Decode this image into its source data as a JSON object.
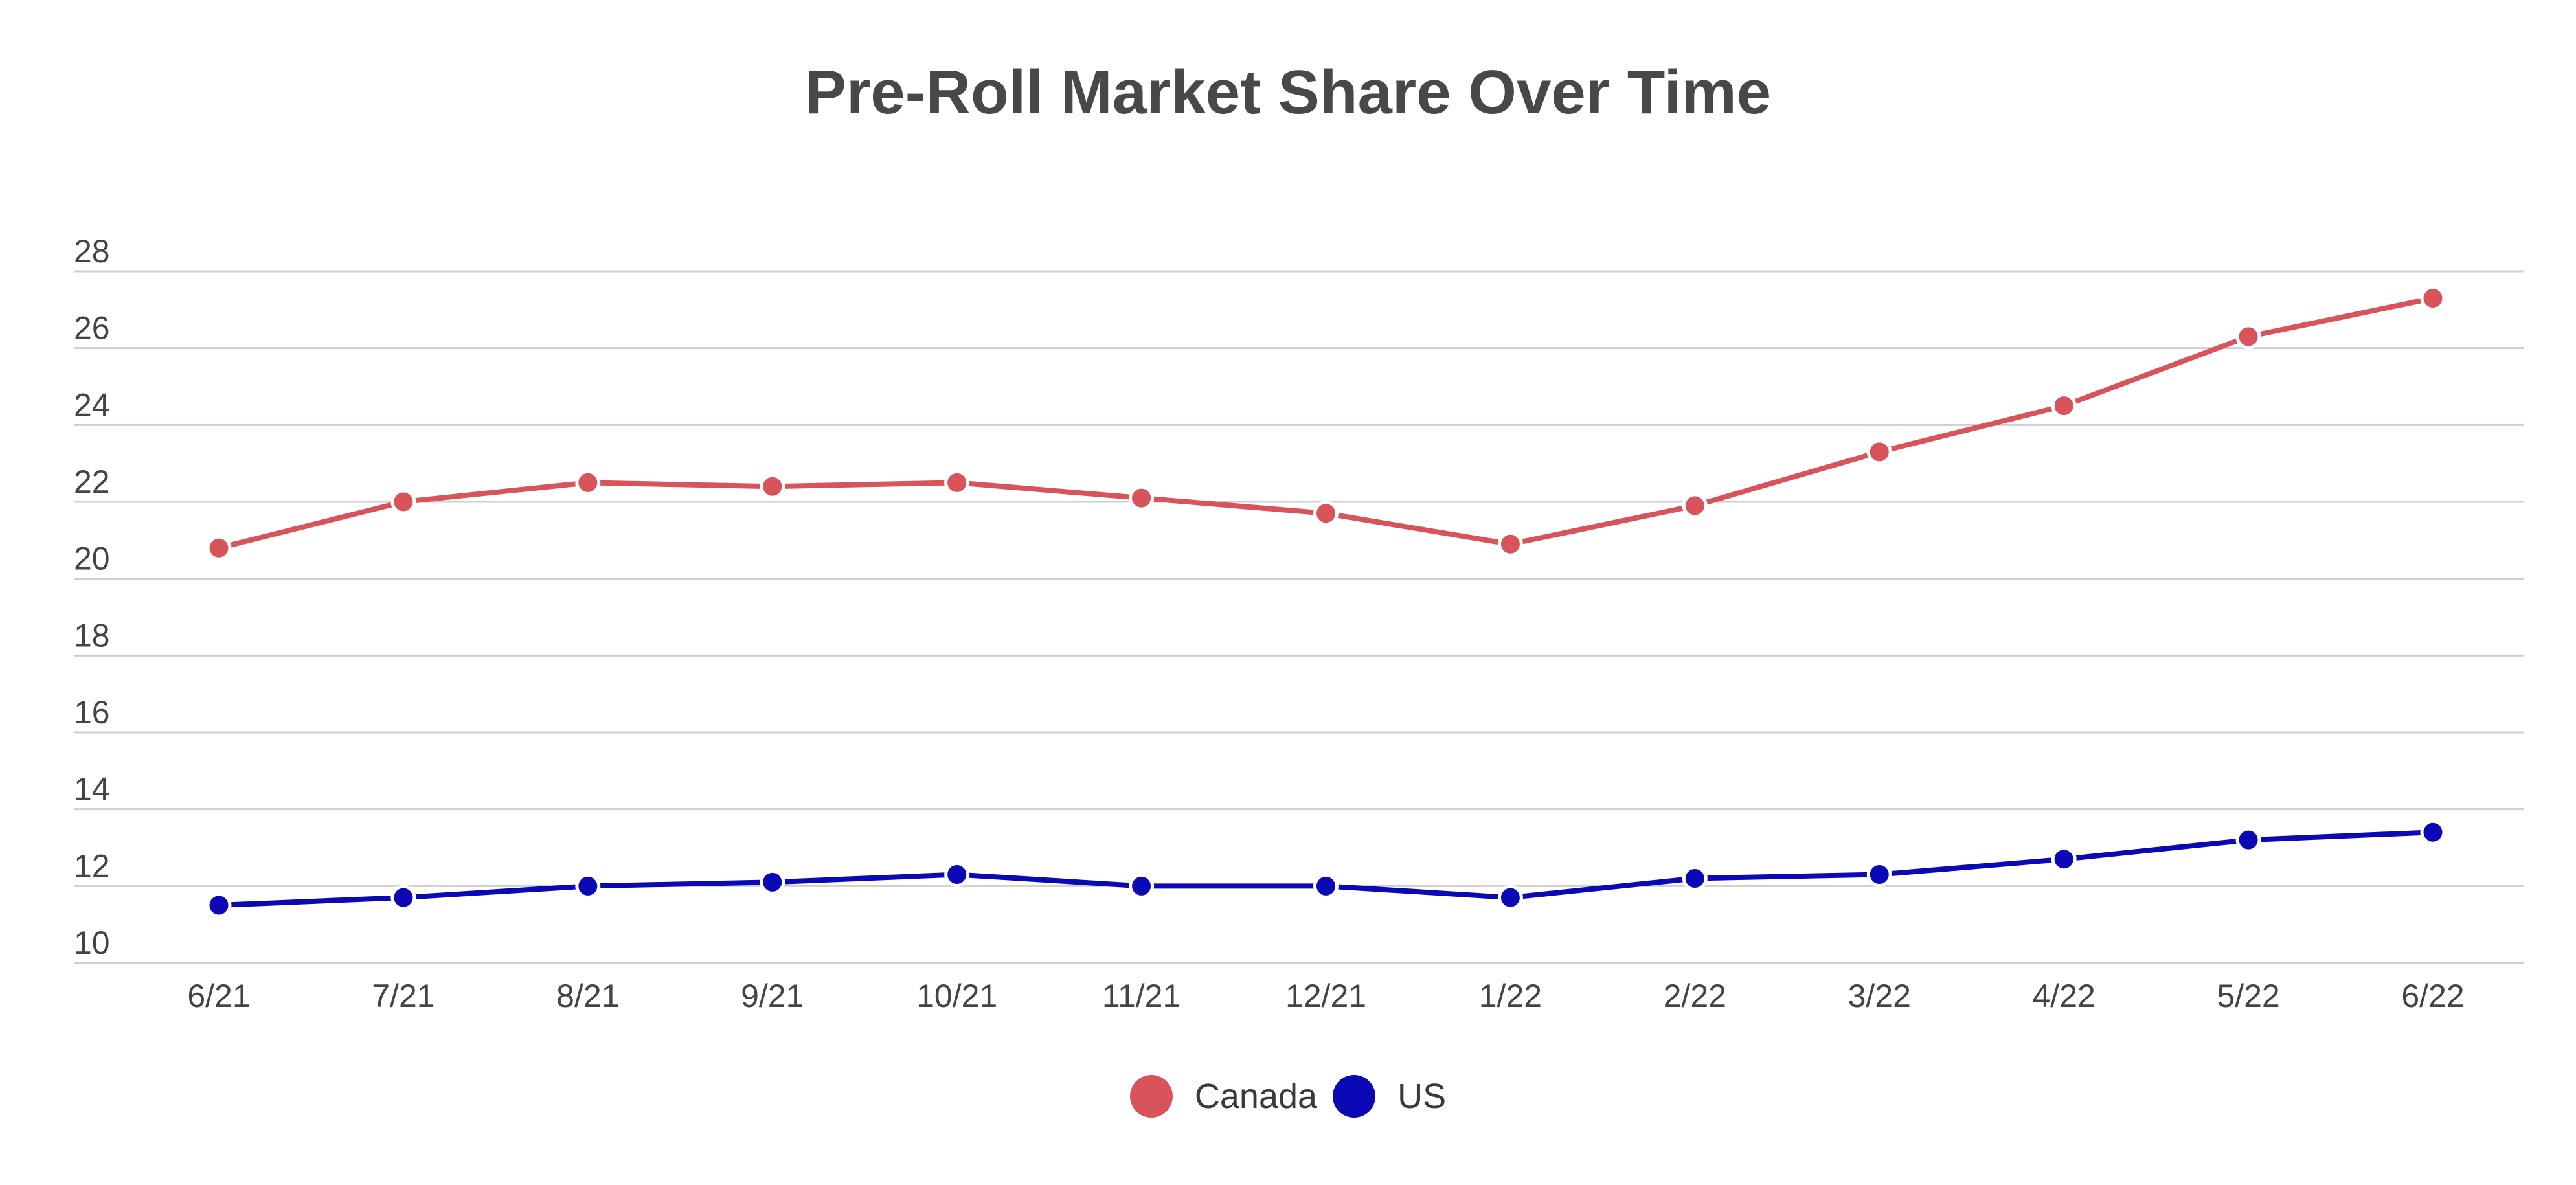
{
  "chart_data": {
    "type": "line",
    "title": "Pre-Roll Market Share Over Time",
    "xlabel": "",
    "ylabel": "",
    "categories": [
      "6/21",
      "7/21",
      "8/21",
      "9/21",
      "10/21",
      "11/21",
      "12/21",
      "1/22",
      "2/22",
      "3/22",
      "4/22",
      "5/22",
      "6/22"
    ],
    "ylim": [
      10,
      28
    ],
    "yticks": [
      "10",
      "12",
      "14",
      "16",
      "18",
      "20",
      "22",
      "24",
      "26",
      "28"
    ],
    "grid": true,
    "legend_position": "bottom-center",
    "series": [
      {
        "name": "Canada",
        "color": "#d9545a",
        "values": [
          20.8,
          22.0,
          22.5,
          22.4,
          22.5,
          22.1,
          21.7,
          20.9,
          21.9,
          23.3,
          24.5,
          26.3,
          27.3
        ]
      },
      {
        "name": "US",
        "color": "#0a09b5",
        "values": [
          11.5,
          11.7,
          12.0,
          12.1,
          12.3,
          12.0,
          12.0,
          11.7,
          12.2,
          12.3,
          12.7,
          13.2,
          13.4
        ]
      }
    ]
  }
}
